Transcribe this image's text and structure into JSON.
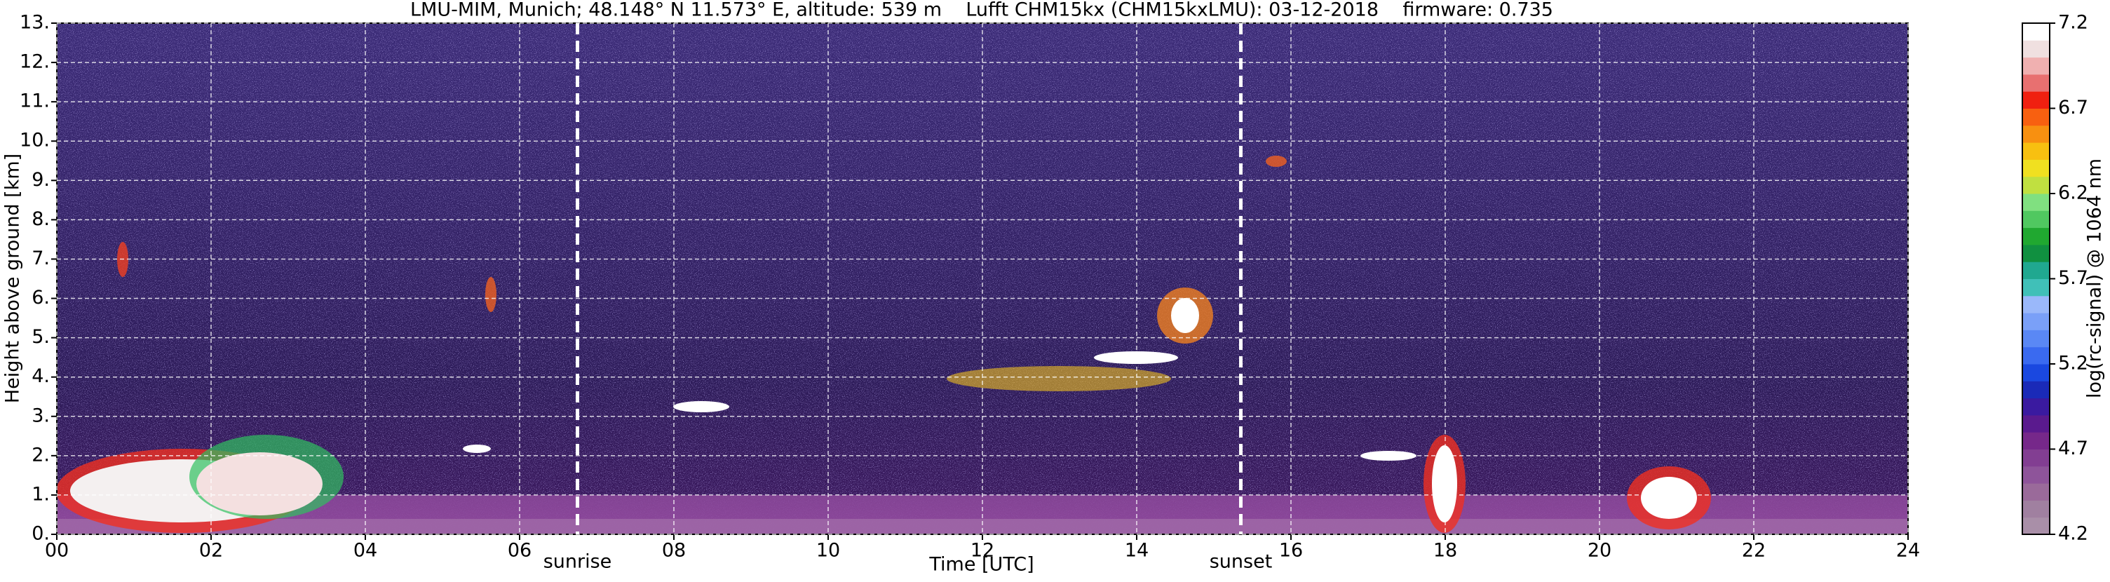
{
  "chart_data": {
    "type": "heatmap",
    "title": "LMU-MIM, Munich; 48.148° N 11.573° E, altitude: 539 m    Lufft CHM15kx (CHM15kxLMU): 03-12-2018    firmware: 0.735",
    "xlabel": "Time [UTC]",
    "ylabel": "Height above ground [km]",
    "xlim": [
      0,
      24
    ],
    "xticks": [
      {
        "value": 0,
        "label": "00"
      },
      {
        "value": 2,
        "label": "02"
      },
      {
        "value": 4,
        "label": "04"
      },
      {
        "value": 6,
        "label": "06"
      },
      {
        "value": 8,
        "label": "08"
      },
      {
        "value": 10,
        "label": "10"
      },
      {
        "value": 12,
        "label": "12"
      },
      {
        "value": 14,
        "label": "14"
      },
      {
        "value": 16,
        "label": "16"
      },
      {
        "value": 18,
        "label": "18"
      },
      {
        "value": 20,
        "label": "20"
      },
      {
        "value": 22,
        "label": "22"
      },
      {
        "value": 24,
        "label": "24"
      }
    ],
    "ylim": [
      0,
      13
    ],
    "yticks": [
      {
        "value": 0,
        "label": "0."
      },
      {
        "value": 1,
        "label": "1."
      },
      {
        "value": 2,
        "label": "2."
      },
      {
        "value": 3,
        "label": "3."
      },
      {
        "value": 4,
        "label": "4."
      },
      {
        "value": 5,
        "label": "5."
      },
      {
        "value": 6,
        "label": "6."
      },
      {
        "value": 7,
        "label": "7."
      },
      {
        "value": 8,
        "label": "8."
      },
      {
        "value": 9,
        "label": "9."
      },
      {
        "value": 10,
        "label": "10."
      },
      {
        "value": 11,
        "label": "11."
      },
      {
        "value": 12,
        "label": "12."
      },
      {
        "value": 13,
        "label": "13."
      }
    ],
    "grid": true,
    "annotations": [
      {
        "label": "sunrise",
        "x": 6.75
      },
      {
        "label": "sunset",
        "x": 15.35
      }
    ],
    "colorbar": {
      "label": "log(rc-signal) @ 1064 nm",
      "lim": [
        4.2,
        7.2
      ],
      "ticks": [
        4.2,
        4.7,
        5.2,
        5.7,
        6.2,
        6.7,
        7.2
      ],
      "colors": [
        "#a98fa8",
        "#a080a0",
        "#9a6a9a",
        "#8e549a",
        "#823e92",
        "#76288a",
        "#5a1a8e",
        "#3a1aa0",
        "#1a2ab8",
        "#1a48e0",
        "#3a6af0",
        "#5a88f5",
        "#7aa0f8",
        "#9ab8fa",
        "#40c0b8",
        "#20a890",
        "#109040",
        "#20a830",
        "#50c860",
        "#80e080",
        "#c0e040",
        "#f0e020",
        "#f8c010",
        "#f89010",
        "#f86010",
        "#f02010",
        "#e87070",
        "#f0b0b0",
        "#f0e0e0",
        "#ffffff"
      ]
    }
  }
}
